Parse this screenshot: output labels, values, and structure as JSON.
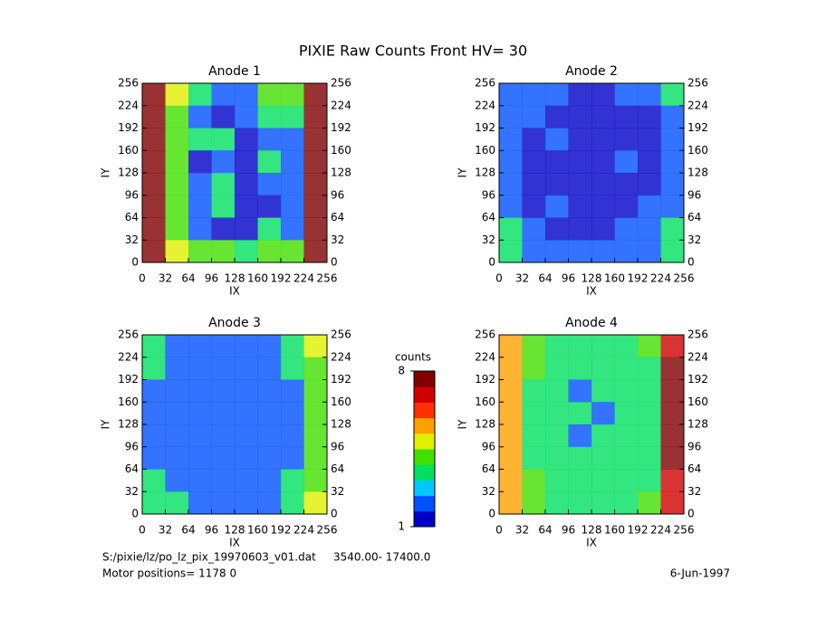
{
  "title": "PIXIE Raw Counts Front HV= 30",
  "chart_data": [
    {
      "type": "heatmap",
      "title": "Anode 1",
      "xlabel": "IX",
      "ylabel": "IY",
      "xlim": [
        0,
        256
      ],
      "ylim": [
        0,
        256
      ],
      "xticks": [
        0,
        32,
        64,
        96,
        128,
        160,
        192,
        224,
        256
      ],
      "yticks": [
        0,
        32,
        64,
        96,
        128,
        160,
        192,
        224,
        256
      ],
      "z": [
        [
          8,
          5,
          3,
          2,
          2,
          4,
          4,
          8
        ],
        [
          8,
          4,
          2,
          1,
          2,
          3,
          3,
          8
        ],
        [
          8,
          4,
          3,
          3,
          1,
          2,
          2,
          8
        ],
        [
          8,
          4,
          1,
          2,
          1,
          3,
          2,
          8
        ],
        [
          8,
          4,
          2,
          3,
          1,
          2,
          2,
          8
        ],
        [
          8,
          4,
          2,
          3,
          1,
          1,
          2,
          8
        ],
        [
          8,
          4,
          2,
          1,
          1,
          3,
          2,
          8
        ],
        [
          8,
          5,
          4,
          4,
          3,
          4,
          4,
          8
        ]
      ]
    },
    {
      "type": "heatmap",
      "title": "Anode 2",
      "xlabel": "IX",
      "ylabel": "IY",
      "xlim": [
        0,
        256
      ],
      "ylim": [
        0,
        256
      ],
      "xticks": [
        0,
        32,
        64,
        96,
        128,
        160,
        192,
        224,
        256
      ],
      "yticks": [
        0,
        32,
        64,
        96,
        128,
        160,
        192,
        224,
        256
      ],
      "z": [
        [
          2,
          2,
          2,
          1,
          1,
          2,
          2,
          3
        ],
        [
          2,
          2,
          1,
          1,
          1,
          1,
          1,
          2
        ],
        [
          2,
          1,
          2,
          1,
          1,
          1,
          1,
          2
        ],
        [
          2,
          1,
          1,
          1,
          1,
          2,
          1,
          2
        ],
        [
          2,
          1,
          1,
          1,
          1,
          1,
          1,
          2
        ],
        [
          2,
          1,
          2,
          1,
          1,
          1,
          2,
          2
        ],
        [
          3,
          2,
          1,
          1,
          1,
          2,
          2,
          3
        ],
        [
          3,
          2,
          2,
          2,
          2,
          2,
          2,
          3
        ]
      ]
    },
    {
      "type": "heatmap",
      "title": "Anode 3",
      "xlabel": "IX",
      "ylabel": "IY",
      "xlim": [
        0,
        256
      ],
      "ylim": [
        0,
        256
      ],
      "xticks": [
        0,
        32,
        64,
        96,
        128,
        160,
        192,
        224,
        256
      ],
      "yticks": [
        0,
        32,
        64,
        96,
        128,
        160,
        192,
        224,
        256
      ],
      "z": [
        [
          3,
          2,
          2,
          2,
          2,
          2,
          3,
          5
        ],
        [
          3,
          2,
          2,
          2,
          2,
          2,
          3,
          4
        ],
        [
          2,
          2,
          2,
          2,
          2,
          2,
          2,
          4
        ],
        [
          2,
          2,
          2,
          2,
          2,
          2,
          2,
          4
        ],
        [
          2,
          2,
          2,
          2,
          2,
          2,
          2,
          4
        ],
        [
          2,
          2,
          2,
          2,
          2,
          2,
          2,
          4
        ],
        [
          3,
          2,
          2,
          2,
          2,
          2,
          3,
          4
        ],
        [
          3,
          3,
          2,
          2,
          2,
          2,
          3,
          5
        ]
      ]
    },
    {
      "type": "heatmap",
      "title": "Anode 4",
      "xlabel": "IX",
      "ylabel": "IY",
      "xlim": [
        0,
        256
      ],
      "ylim": [
        0,
        256
      ],
      "xticks": [
        0,
        32,
        64,
        96,
        128,
        160,
        192,
        224,
        256
      ],
      "yticks": [
        0,
        32,
        64,
        96,
        128,
        160,
        192,
        224,
        256
      ],
      "z": [
        [
          6,
          4,
          3,
          3,
          3,
          3,
          4,
          7
        ],
        [
          6,
          4,
          3,
          3,
          3,
          3,
          3,
          8
        ],
        [
          6,
          3,
          3,
          2,
          3,
          3,
          3,
          8
        ],
        [
          6,
          3,
          3,
          3,
          2,
          3,
          3,
          8
        ],
        [
          6,
          3,
          3,
          2,
          3,
          3,
          3,
          8
        ],
        [
          6,
          3,
          3,
          3,
          3,
          3,
          3,
          8
        ],
        [
          6,
          4,
          3,
          3,
          3,
          3,
          3,
          7
        ],
        [
          6,
          4,
          3,
          3,
          3,
          3,
          4,
          7
        ]
      ]
    }
  ],
  "colorbar": {
    "label": "counts",
    "lim": [
      1,
      8
    ],
    "ticks": [
      1,
      8
    ],
    "colors": [
      "#0000c8",
      "#0050ff",
      "#00c8ff",
      "#00e060",
      "#40e000",
      "#e0f000",
      "#ffa000",
      "#ff3000",
      "#d00000",
      "#800000"
    ]
  },
  "footer": {
    "file": "S:/pixie/lz/po_lz_pix_19970603_v01.dat",
    "range": "3540.00- 17400.0",
    "motor": "Motor positions= 1178 0",
    "date": "6-Jun-1997"
  }
}
